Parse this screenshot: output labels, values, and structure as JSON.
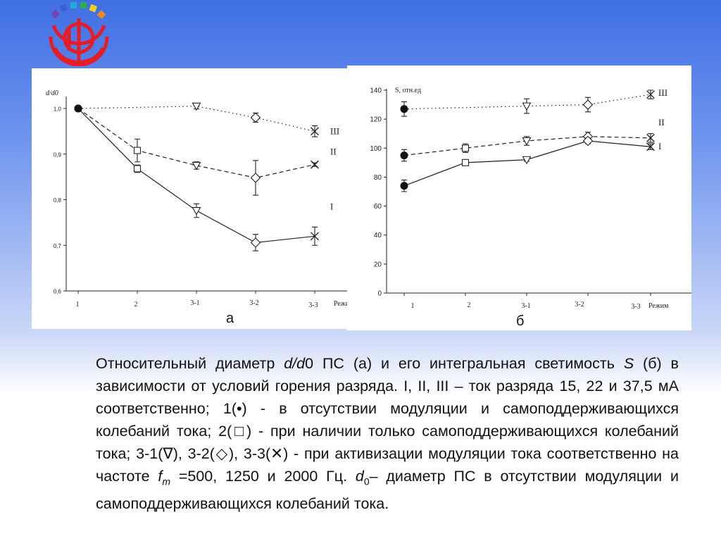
{
  "chart_data": [
    {
      "type": "line",
      "panel_label": "а",
      "ylabel": "d/d0",
      "xlabel": "Режим",
      "categories": [
        "1",
        "2",
        "3-1",
        "3-2",
        "3-3"
      ],
      "ylim": [
        0.6,
        1.0
      ],
      "yticks": [
        "0,6",
        "0,7",
        "0,8",
        "0,9",
        "1,0"
      ],
      "series": [
        {
          "name": "Ш",
          "line": "dotted",
          "values": [
            1.0,
            null,
            1.005,
            0.98,
            0.95
          ],
          "errors": [
            0,
            null,
            0.006,
            0.01,
            0.012
          ],
          "markers": [
            "dot",
            null,
            "triangle",
            "diamond",
            "cross"
          ]
        },
        {
          "name": "II",
          "line": "dashed",
          "values": [
            1.0,
            0.908,
            0.875,
            0.848,
            0.877
          ],
          "errors": [
            0,
            0.025,
            0.008,
            0.038,
            0.004
          ],
          "markers": [
            "dot",
            "square",
            "triangle",
            "diamond",
            "cross"
          ]
        },
        {
          "name": "I",
          "line": "solid",
          "values": [
            1.0,
            0.868,
            0.776,
            0.706,
            0.72
          ],
          "errors": [
            0,
            0.008,
            0.015,
            0.018,
            0.02
          ],
          "markers": [
            "dot",
            "square",
            "triangle",
            "diamond",
            "cross"
          ]
        }
      ]
    },
    {
      "type": "line",
      "panel_label": "б",
      "ylabel": "S, отн.ед",
      "xlabel": "Режим",
      "categories": [
        "1",
        "2",
        "3-1",
        "3-2",
        "3-3"
      ],
      "ylim": [
        0,
        140
      ],
      "yticks": [
        "0",
        "20",
        "40",
        "60",
        "80",
        "100",
        "120",
        "140"
      ],
      "series": [
        {
          "name": "Ш",
          "line": "dotted",
          "values": [
            127,
            null,
            129,
            130,
            137
          ],
          "errors": [
            5,
            null,
            5,
            5,
            3
          ],
          "markers": [
            "dot",
            null,
            "triangle",
            "diamond",
            "cross"
          ]
        },
        {
          "name": "II",
          "line": "dashed",
          "values": [
            95,
            100,
            105,
            108,
            107
          ],
          "errors": [
            4,
            3,
            3,
            3,
            3
          ],
          "markers": [
            "dot",
            "square",
            "triangle",
            "diamond",
            "cross"
          ]
        },
        {
          "name": "I",
          "line": "solid",
          "values": [
            74,
            90,
            92,
            105,
            101
          ],
          "errors": [
            4,
            2,
            1,
            2,
            2
          ],
          "markers": [
            "dot",
            "square",
            "triangle",
            "diamond",
            "cross"
          ]
        }
      ]
    }
  ],
  "caption": {
    "t1": "Относительный диаметр ",
    "d": "d",
    "slash": "/",
    "d2": "d",
    "t2": "0 ПС (а) и его интегральная светимость ",
    "S": "S",
    "t3": " (б) в зависимости от условий горения разряда. I, II, III  – ток разряда 15, 22 и 37,5 мА соответственно; 1(•) - в отсутствии модуляции и самоподдерживающихся колебаний тока; 2(□) - при наличии только самоподдерживающихся колебаний тока; 3-1(∇), 3-2(◇), 3-3(✕) - при активизации модуляции тока соответственно на частоте ",
    "f": "f",
    "fsub": "m",
    "t4": " =500, 1250 и 2000 Гц. ",
    "d0": "d",
    "d0sub": "0",
    "t5": "– диаметр ПС в отсутствии модуляции и самоподдерживающихся колебаний тока."
  },
  "colors": {
    "logo_red": "#e41e26",
    "background_top": "#3f6fe3",
    "axes": "#222222"
  }
}
